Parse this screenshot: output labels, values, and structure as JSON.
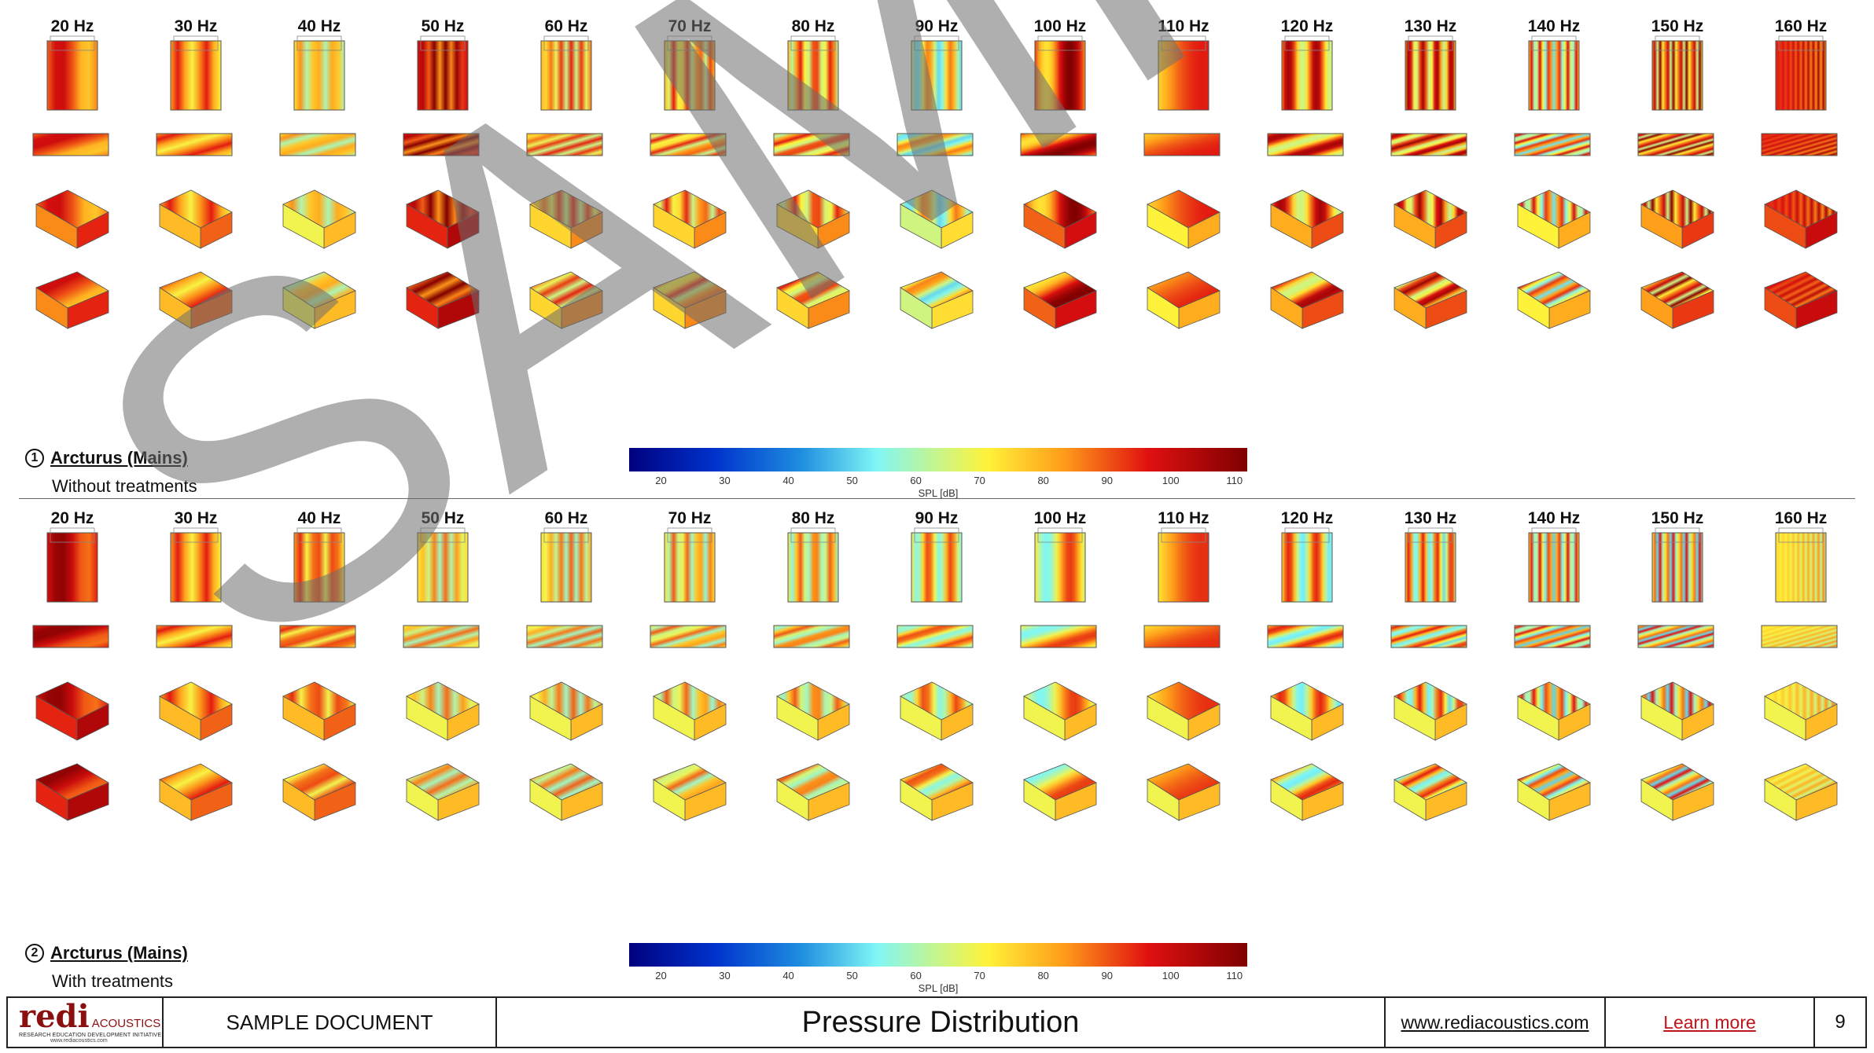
{
  "sections": [
    {
      "number": "1",
      "title": "Arcturus (Mains)",
      "subtitle": "Without treatments",
      "frequencies": [
        "20 Hz",
        "30 Hz",
        "40 Hz",
        "50 Hz",
        "60 Hz",
        "70 Hz",
        "80 Hz",
        "90 Hz",
        "100 Hz",
        "110 Hz",
        "120 Hz",
        "130 Hz",
        "140 Hz",
        "150 Hz",
        "160 Hz"
      ]
    },
    {
      "number": "2",
      "title": "Arcturus (Mains)",
      "subtitle": "With treatments",
      "frequencies": [
        "20 Hz",
        "30 Hz",
        "40 Hz",
        "50 Hz",
        "60 Hz",
        "70 Hz",
        "80 Hz",
        "90 Hz",
        "100 Hz",
        "110 Hz",
        "120 Hz",
        "130 Hz",
        "140 Hz",
        "150 Hz",
        "160 Hz"
      ]
    }
  ],
  "colorbar": {
    "ticks": [
      "20",
      "30",
      "40",
      "50",
      "60",
      "70",
      "80",
      "90",
      "100",
      "110"
    ],
    "label": "SPL [dB]",
    "range": [
      15,
      112
    ]
  },
  "views": [
    "top-view",
    "side-view",
    "iso-view-front",
    "iso-view-back"
  ],
  "palette": {
    "low": "#00007f",
    "mid_low": "#7ff6f6",
    "mid": "#fff23a",
    "high": "#e01010",
    "max": "#7f0000",
    "brand": "#8a0f0f",
    "link_red": "#c0141b"
  },
  "watermark": "SAMPLE",
  "footer": {
    "logo_text": "redi",
    "logo_sub": "ACOUSTICS",
    "logo_tagline": "RESEARCH EDUCATION DEVELOPMENT INITIATIVE",
    "logo_url": "www.rediacoustics.com",
    "doc_label": "SAMPLE DOCUMENT",
    "page_title": "Pressure Distribution",
    "website": "www.rediacoustics.com",
    "learn_more": "Learn more",
    "page_number": "9"
  }
}
